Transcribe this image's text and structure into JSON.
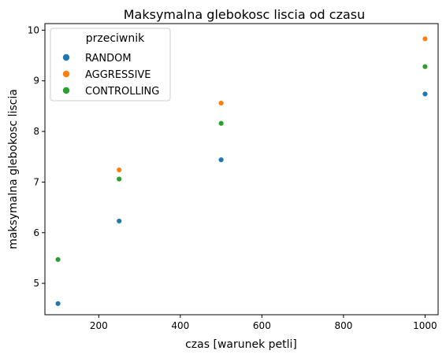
{
  "chart_data": {
    "type": "scatter",
    "title": "Maksymalna glebokosc liscia od czasu",
    "xlabel": "czas [warunek petli]",
    "ylabel": "maksymalna glebokosc liscia",
    "xlim": [
      68,
      1032
    ],
    "ylim": [
      4.38,
      10.13
    ],
    "xticks": [
      200,
      400,
      600,
      800,
      1000
    ],
    "yticks": [
      5,
      6,
      7,
      8,
      9,
      10
    ],
    "grid": false,
    "legend": {
      "title": "przeciwnik",
      "placement": "upper-left"
    },
    "series": [
      {
        "name": "RANDOM",
        "color": "#1f77b4",
        "points": [
          [
            100,
            4.6
          ],
          [
            250,
            6.23
          ],
          [
            500,
            7.44
          ],
          [
            1000,
            8.74
          ]
        ]
      },
      {
        "name": "AGGRESSIVE",
        "color": "#ff7f0e",
        "points": [
          [
            250,
            7.24
          ],
          [
            500,
            8.56
          ],
          [
            1000,
            9.83
          ]
        ]
      },
      {
        "name": "CONTROLLING",
        "color": "#2ca02c",
        "points": [
          [
            100,
            5.47
          ],
          [
            250,
            7.06
          ],
          [
            500,
            8.16
          ],
          [
            1000,
            9.28
          ]
        ]
      }
    ]
  }
}
